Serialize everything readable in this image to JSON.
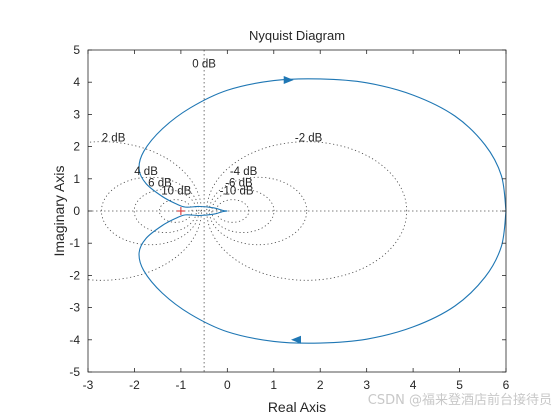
{
  "chart_data": {
    "type": "line",
    "title": "Nyquist Diagram",
    "xlabel": "Real Axis",
    "ylabel": "Imaginary Axis",
    "xlim": [
      -3,
      6
    ],
    "ylim": [
      -5,
      5
    ],
    "xticks": [
      -3,
      -2,
      -1,
      0,
      1,
      2,
      3,
      4,
      5,
      6
    ],
    "yticks": [
      -5,
      -4,
      -3,
      -2,
      -1,
      0,
      1,
      2,
      3,
      4,
      5
    ],
    "grid": "M-circles (dotted)",
    "critical_point": [
      -1,
      0
    ],
    "m_circles": [
      {
        "label": "0 dB",
        "db": 0
      },
      {
        "label": "2 dB",
        "db": 2
      },
      {
        "label": "4 dB",
        "db": 4
      },
      {
        "label": "6 dB",
        "db": 6
      },
      {
        "label": "10 dB",
        "db": 10
      },
      {
        "label": "-2 dB",
        "db": -2
      },
      {
        "label": "-4 dB",
        "db": -4
      },
      {
        "label": "-6 dB",
        "db": -6
      },
      {
        "label": "-10 dB",
        "db": -10
      }
    ],
    "series": [
      {
        "color": "#1f77b4",
        "points": [
          [
            6.0,
            0.0
          ],
          [
            5.9,
            1.1
          ],
          [
            5.55,
            2.05
          ],
          [
            4.9,
            2.95
          ],
          [
            4.0,
            3.6
          ],
          [
            3.0,
            3.98
          ],
          [
            2.0,
            4.1
          ],
          [
            1.0,
            4.05
          ],
          [
            0.0,
            3.75
          ],
          [
            -0.8,
            3.2
          ],
          [
            -1.4,
            2.55
          ],
          [
            -1.8,
            1.85
          ],
          [
            -1.9,
            1.3
          ],
          [
            -1.75,
            0.85
          ],
          [
            -1.4,
            0.45
          ],
          [
            -1.1,
            0.22
          ],
          [
            -0.9,
            0.12
          ],
          [
            -0.6,
            0.14
          ],
          [
            -0.3,
            0.1
          ],
          [
            -0.1,
            0.02
          ],
          [
            0.0,
            0.0
          ]
        ],
        "arrows": [
          {
            "x": 1.3,
            "y": 4.07,
            "dir": "right"
          },
          {
            "x": 1.5,
            "y": -4.0,
            "dir": "left"
          }
        ]
      }
    ]
  },
  "watermark": "CSDN @福来登酒店前台接待员"
}
